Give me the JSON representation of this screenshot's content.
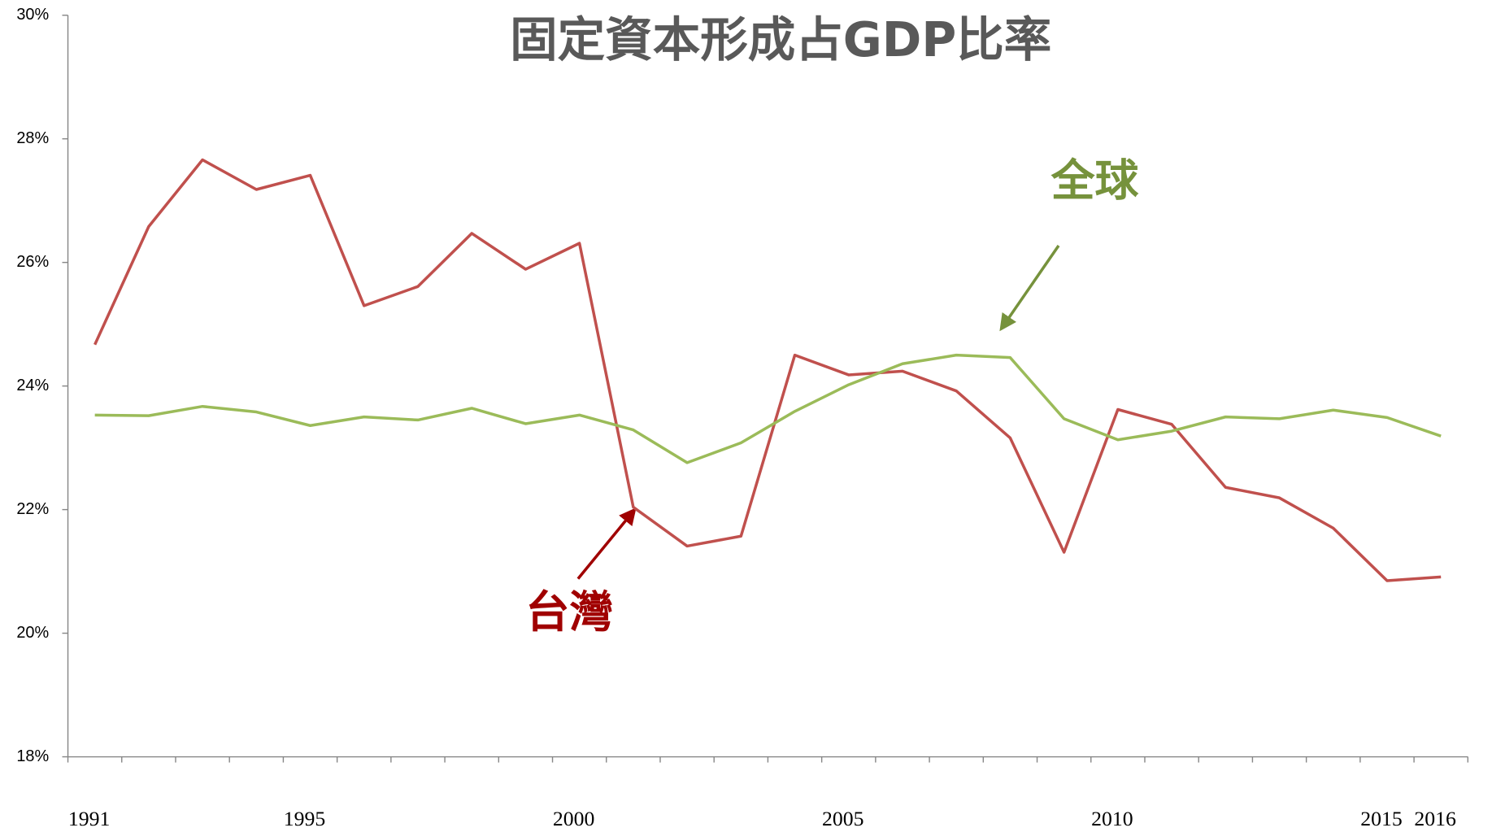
{
  "chart_data": {
    "type": "line",
    "title": "固定資本形成占GDP比率",
    "categories": [
      "1991",
      null,
      null,
      null,
      "1995",
      null,
      null,
      null,
      null,
      "2000",
      null,
      null,
      null,
      null,
      "2005",
      null,
      null,
      null,
      null,
      "2010",
      null,
      null,
      null,
      null,
      "2015",
      "2016"
    ],
    "series": [
      {
        "name": "台灣",
        "color": "#c0504d",
        "values": [
          24.67,
          26.58,
          27.66,
          27.18,
          27.41,
          25.3,
          25.61,
          26.47,
          25.89,
          26.31,
          22.04,
          21.41,
          21.57,
          24.5,
          24.18,
          24.24,
          23.92,
          23.16,
          21.31,
          23.62,
          23.38,
          22.36,
          22.19,
          21.7,
          20.85,
          20.91
        ]
      },
      {
        "name": "全球",
        "color": "#9bbb59",
        "values": [
          23.53,
          23.52,
          23.67,
          23.58,
          23.36,
          23.5,
          23.45,
          23.64,
          23.39,
          23.53,
          23.29,
          22.76,
          23.08,
          23.59,
          24.02,
          24.36,
          24.5,
          24.46,
          23.47,
          23.13,
          23.27,
          23.5,
          23.47,
          23.61,
          23.49,
          23.19
        ]
      }
    ],
    "ylim": [
      18,
      30
    ],
    "yticks": [
      {
        "value": 18,
        "label": "18%"
      },
      {
        "value": 20,
        "label": "20%"
      },
      {
        "value": 22,
        "label": "22%"
      },
      {
        "value": 24,
        "label": "24%"
      },
      {
        "value": 26,
        "label": "26%"
      },
      {
        "value": 28,
        "label": "28%"
      },
      {
        "value": 30,
        "label": "30%"
      }
    ],
    "grid": false
  }
}
